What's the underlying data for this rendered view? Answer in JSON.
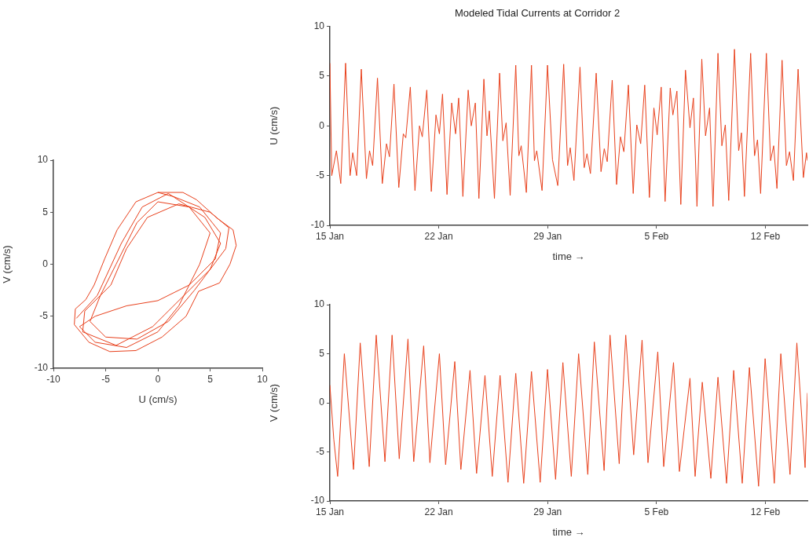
{
  "chart_data": [
    {
      "type": "line",
      "xlabel": "U (cm/s)",
      "ylabel": "V (cm/s)",
      "color": "#e8401c",
      "xlim": [
        -10,
        10
      ],
      "ylim": [
        -10,
        10
      ],
      "xticks": [
        -10,
        -5,
        0,
        5,
        10
      ],
      "yticks": [
        -10,
        -5,
        0,
        5,
        10
      ],
      "grid": false,
      "legend": false,
      "x": [
        0,
        2.4,
        3.7,
        5.7,
        7.2,
        7.5,
        6.9,
        5.9,
        3.9,
        2.7,
        0.4,
        -2.1,
        -4.6,
        -6.6,
        -8.0,
        -7.9,
        -6.9,
        -6.1,
        -5.1,
        -3.9,
        -2.1,
        0,
        1.5,
        4,
        6,
        5.5,
        3,
        0,
        -3,
        -6,
        -7.5,
        -6,
        -3,
        0,
        2,
        4,
        5,
        3,
        0,
        -2,
        -4,
        -5.5,
        -6.5,
        -5,
        -2,
        1,
        3.5,
        6.5,
        6.8,
        5,
        2,
        -1,
        -3,
        -4.5,
        -7,
        -7.2,
        -4,
        -0.5,
        2.5,
        5,
        6,
        4.5,
        1,
        -1.5,
        -3.5,
        -5.8,
        -7.8
      ],
      "values": [
        6.9,
        6.9,
        6.2,
        4.4,
        3.3,
        1.8,
        0,
        -1.8,
        -2.6,
        -5.0,
        -7.0,
        -8.3,
        -8.4,
        -7.5,
        -5.8,
        -4.3,
        -3.4,
        -2.0,
        0.5,
        3.3,
        6.0,
        6.9,
        6.5,
        5.5,
        3,
        0.5,
        -2,
        -3.5,
        -4,
        -5,
        -6,
        -7.5,
        -8,
        -6.5,
        -4,
        0,
        3,
        5.5,
        6,
        4,
        0,
        -3,
        -5.5,
        -7,
        -7.2,
        -5.5,
        -2.5,
        1.5,
        3.5,
        5,
        5.8,
        4.5,
        1.5,
        -2,
        -4.5,
        -6.5,
        -7.8,
        -6,
        -3,
        -0.5,
        2,
        4.5,
        6.8,
        5.5,
        2,
        -3,
        -5.2
      ]
    },
    {
      "type": "line",
      "title": "Modeled Tidal Currents at Corridor 2",
      "xlabel": "time →",
      "ylabel": "U (cm/s)",
      "color": "#e8401c",
      "xlim": [
        "--01-15T00:00",
        "--02-14T16:48"
      ],
      "ylim": [
        -10,
        10
      ],
      "xticks": [
        {
          "value": "--01-15",
          "label": "15 Jan"
        },
        {
          "value": "--01-22",
          "label": "22 Jan"
        },
        {
          "value": "--01-29",
          "label": "29 Jan"
        },
        {
          "value": "--02-05",
          "label": "5 Feb"
        },
        {
          "value": "--02-12",
          "label": "12 Feb"
        }
      ],
      "yticks": [
        -10,
        -5,
        0,
        5,
        10
      ],
      "grid": false,
      "legend": false,
      "x": [
        "--01-15T00:00",
        "--01-15T02:53",
        "--01-15T10:05",
        "--01-15T16:48",
        "--01-16T00:14",
        "--01-16T07:12",
        "--01-16T11:17",
        "--01-16T17:17",
        "--01-17T00:29",
        "--01-17T08:24",
        "--01-17T13:12",
        "--01-17T18:00",
        "--01-18T01:26",
        "--01-18T08:53",
        "--01-18T15:22",
        "--01-18T19:55",
        "--01-19T02:53",
        "--01-19T10:19",
        "--01-19T17:17",
        "--01-19T21:07",
        "--01-20T04:05",
        "--01-20T11:17",
        "--01-20T18:14",
        "--01-20T22:34",
        "--01-21T05:31",
        "--01-21T12:29",
        "--01-21T19:41",
        "--01-22T00:58",
        "--01-22T05:46",
        "--01-22T12:43",
        "--01-22T19:55",
        "--01-23T01:55",
        "--01-23T06:43",
        "--01-23T13:12",
        "--01-23T21:22",
        "--01-24T02:10",
        "--01-24T08:24",
        "--01-24T13:55",
        "--01-24T21:36",
        "--01-25T02:24",
        "--01-25T06:00",
        "--01-25T13:55",
        "--01-25T21:50",
        "--01-26T02:53",
        "--01-26T07:55",
        "--01-26T14:10",
        "--01-26T22:48",
        "--01-27T03:36",
        "--01-27T07:12",
        "--01-27T15:07",
        "--01-27T23:02",
        "--01-28T03:36",
        "--01-28T07:12",
        "--01-28T15:22",
        "--01-28T23:46",
        "--01-29T07:26",
        "--01-29T15:36",
        "--01-30T00:43",
        "--01-30T06:43",
        "--01-30T10:48",
        "--01-30T16:34",
        "--01-31T01:55",
        "--01-31T08:24",
        "--01-31T12:43",
        "--01-31T18:00",
        "--02-01T02:53",
        "--02-01T10:19",
        "--02-01T15:22",
        "--02-01T19:55",
        "--02-02T03:36",
        "--02-02T10:19",
        "--02-02T16:19",
        "--02-02T21:36",
        "--02-03T04:34",
        "--02-03T12:00",
        "--02-03T17:31",
        "--02-03T23:31",
        "--02-04T05:46",
        "--02-04T12:58",
        "--02-04T19:55",
        "--02-05T00:58",
        "--02-05T07:12",
        "--02-05T13:12",
        "--02-05T21:07",
        "--02-06T01:12",
        "--02-06T07:26",
        "--02-06T13:26",
        "--02-06T20:38",
        "--02-07T03:36",
        "--02-07T08:53",
        "--02-07T14:24",
        "--02-07T21:50",
        "--02-08T03:36",
        "--02-08T09:50",
        "--02-08T15:07",
        "--02-08T22:48",
        "--02-09T04:48",
        "--02-09T10:05",
        "--02-09T15:22",
        "--02-10T00:14",
        "--02-10T06:43",
        "--02-10T11:02",
        "--02-10T15:36",
        "--02-11T01:12",
        "--02-11T07:12",
        "--02-11T11:46",
        "--02-11T16:34",
        "--02-12T01:26",
        "--02-12T07:55",
        "--02-12T12:43",
        "--02-12T17:46",
        "--02-13T01:41",
        "--02-13T08:24",
        "--02-13T13:12",
        "--02-13T19:12",
        "--02-14T02:24",
        "--02-14T10:34",
        "--02-14T15:22",
        "--02-14T16:48"
      ],
      "values": [
        6.3,
        -5.0,
        -2.5,
        -5.8,
        6.3,
        -5.0,
        -2.7,
        -5.0,
        5.7,
        -5.3,
        -2.5,
        -4.0,
        4.8,
        -5.8,
        -1.8,
        -3.1,
        4.2,
        -6.2,
        -0.8,
        -1.2,
        3.9,
        -6.5,
        0.0,
        -1.1,
        3.6,
        -6.6,
        1.1,
        -0.8,
        3.2,
        -6.9,
        2.3,
        -0.8,
        2.8,
        -7.1,
        3.6,
        0.0,
        2.3,
        -7.3,
        4.7,
        -1.0,
        1.5,
        -7.3,
        5.3,
        -1.5,
        0.3,
        -7.0,
        6.1,
        -3.0,
        -2.0,
        -6.7,
        6.1,
        -3.5,
        -2.5,
        -6.5,
        6.1,
        -3.4,
        -6.0,
        6.2,
        -4.0,
        -2.2,
        -5.5,
        5.9,
        -4.2,
        -2.8,
        -4.8,
        5.3,
        -4.6,
        -2.3,
        -3.6,
        4.6,
        -5.9,
        -1.1,
        -2.6,
        4.1,
        -6.8,
        0.1,
        -1.8,
        4.1,
        -7.2,
        1.8,
        -0.9,
        3.9,
        -7.6,
        3.8,
        1.1,
        3.5,
        -7.9,
        5.6,
        -0.2,
        2.8,
        -8.1,
        6.7,
        -1.0,
        1.8,
        -8.1,
        7.3,
        -2.0,
        0.1,
        -7.5,
        7.7,
        -2.5,
        -0.7,
        -7.1,
        7.3,
        -3.0,
        -1.4,
        -6.8,
        7.3,
        -3.5,
        -2.0,
        -6.3,
        6.6,
        -4.0,
        -2.6,
        -5.5,
        5.7,
        -5.2,
        -2.7,
        -3.5
      ]
    },
    {
      "type": "line",
      "xlabel": "time →",
      "ylabel": "V (cm/s)",
      "color": "#e8401c",
      "xlim": [
        "--01-15T00:00",
        "--02-14T16:48"
      ],
      "ylim": [
        -10,
        10
      ],
      "xticks": [
        {
          "value": "--01-15",
          "label": "15 Jan"
        },
        {
          "value": "--01-22",
          "label": "22 Jan"
        },
        {
          "value": "--01-29",
          "label": "29 Jan"
        },
        {
          "value": "--02-05",
          "label": "5 Feb"
        },
        {
          "value": "--02-12",
          "label": "12 Feb"
        }
      ],
      "yticks": [
        -10,
        -5,
        0,
        5,
        10
      ],
      "grid": false,
      "legend": false,
      "x": [
        "--01-15T00:00",
        "--01-15T06:00",
        "--01-15T12:00",
        "--01-15T22:19",
        "--01-16T12:29",
        "--01-16T22:48",
        "--01-17T12:43",
        "--01-17T23:31",
        "--01-18T12:58",
        "--01-19T00:00",
        "--01-19T11:02",
        "--01-20T00:29",
        "--01-20T09:22",
        "--01-21T00:43",
        "--01-21T10:19",
        "--01-22T00:58",
        "--01-22T10:34",
        "--01-23T00:43",
        "--01-23T10:05",
        "--01-24T00:14",
        "--01-24T10:19",
        "--01-24T23:17",
        "--01-25T10:34",
        "--01-25T22:34",
        "--01-26T10:48",
        "--01-26T22:48",
        "--01-27T11:02",
        "--01-27T23:02",
        "--01-28T12:29",
        "--01-28T23:46",
        "--01-29T12:14",
        "--01-29T23:31",
        "--01-30T12:29",
        "--01-30T23:46",
        "--01-31T13:55",
        "--02-01T00:00",
        "--02-01T15:07",
        "--02-02T00:14",
        "--02-02T14:24",
        "--02-03T00:29",
        "--02-03T12:43",
        "--02-04T01:41",
        "--02-04T10:48",
        "--02-05T01:55",
        "--02-05T11:02",
        "--02-06T02:10",
        "--02-06T11:17",
        "--02-07T03:36",
        "--02-07T11:31",
        "--02-07T22:34",
        "--02-08T11:46",
        "--02-08T22:48",
        "--02-09T12:00",
        "--02-09T23:02",
        "--02-10T12:14",
        "--02-10T23:17",
        "--02-11T13:26",
        "--02-11T23:31",
        "--02-12T13:41",
        "--02-12T23:46",
        "--02-13T13:55",
        "--02-14T00:29",
        "--02-14T13:12",
        "--02-14T16:48"
      ],
      "values": [
        1.8,
        -3.7,
        -7.5,
        5.0,
        -6.8,
        6.1,
        -6.5,
        6.9,
        -6.0,
        6.9,
        -5.7,
        6.5,
        -6.0,
        5.8,
        -6.1,
        5.0,
        -6.3,
        4.2,
        -6.8,
        3.3,
        -7.2,
        2.8,
        -7.5,
        2.8,
        -8.1,
        3.0,
        -8.2,
        3.2,
        -8.1,
        3.4,
        -7.8,
        4.1,
        -7.5,
        5.0,
        -7.3,
        6.2,
        -6.9,
        6.9,
        -6.2,
        6.9,
        -5.3,
        6.4,
        -6.1,
        5.2,
        -6.5,
        4.1,
        -7.0,
        2.5,
        -7.5,
        2.1,
        -7.7,
        2.6,
        -8.2,
        3.3,
        -8.2,
        3.6,
        -8.5,
        4.5,
        -8.2,
        5.0,
        -7.3,
        6.1,
        -6.6,
        1.0
      ]
    }
  ]
}
